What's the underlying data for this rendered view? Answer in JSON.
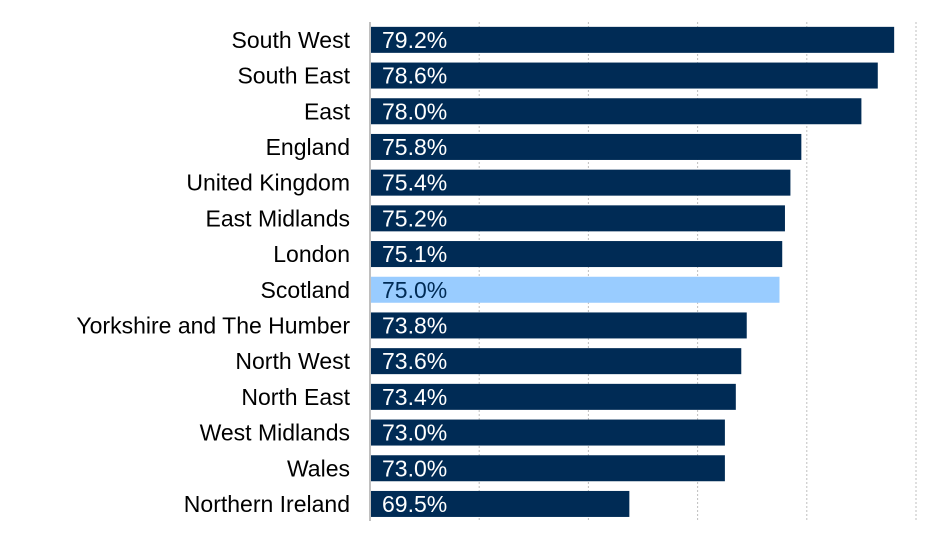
{
  "chart_data": {
    "type": "bar",
    "orientation": "horizontal",
    "title": "",
    "xlabel": "",
    "ylabel": "",
    "xlim": [
      60,
      80
    ],
    "grid": true,
    "legend": "none",
    "categories": [
      "South West",
      "South East",
      "East",
      "England",
      "United Kingdom",
      "East Midlands",
      "London",
      "Scotland",
      "Yorkshire and The Humber",
      "North West",
      "North East",
      "West Midlands",
      "Wales",
      "Northern Ireland"
    ],
    "values": [
      79.2,
      78.6,
      78.0,
      75.8,
      75.4,
      75.2,
      75.1,
      75.0,
      73.8,
      73.6,
      73.4,
      73.0,
      73.0,
      69.5
    ],
    "value_labels": [
      "79.2%",
      "78.6%",
      "78.0%",
      "75.8%",
      "75.4%",
      "75.2%",
      "75.1%",
      "75.0%",
      "73.8%",
      "73.6%",
      "73.4%",
      "73.0%",
      "73.0%",
      "69.5%"
    ],
    "highlight_category": "Scotland",
    "colors": {
      "bar": "#002b55",
      "highlight": "#99ccff",
      "label_on_bar": "#ffffff",
      "label_on_highlight": "#002b55",
      "grid": "#bfbfbf",
      "axis": "#808080"
    }
  }
}
